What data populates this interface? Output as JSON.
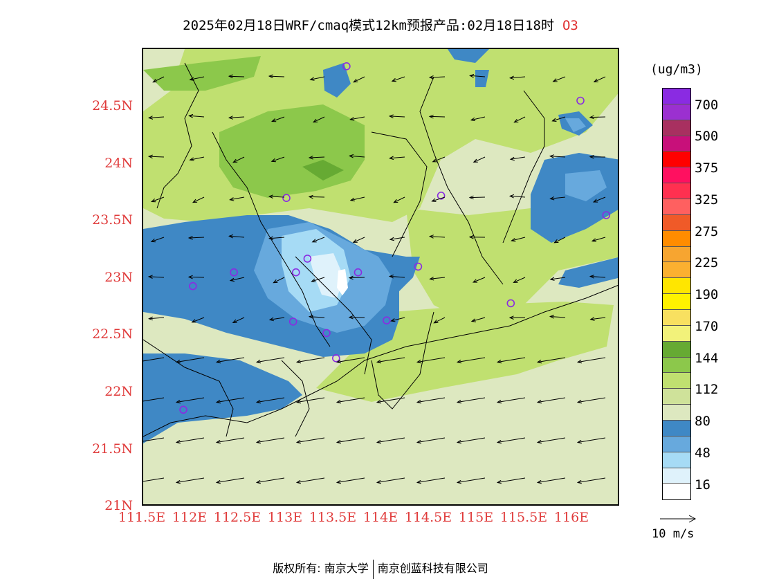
{
  "title": {
    "main": "2025年02月18日WRF/cmaq模式12km预报产品:02月18日18时",
    "species": "O3"
  },
  "axes": {
    "y_labels": [
      "24.5N",
      "24N",
      "23.5N",
      "23N",
      "22.5N",
      "22N",
      "21.5N",
      "21N"
    ],
    "x_labels": [
      "111.5E",
      "112E",
      "112.5E",
      "113E",
      "113.5E",
      "114E",
      "114.5E",
      "115E",
      "115.5E",
      "116E"
    ]
  },
  "legend": {
    "unit": "(ug/m3)",
    "colors": [
      "#8a2be2",
      "#9b30d0",
      "#a83060",
      "#c8107a",
      "#ff0000",
      "#ff1060",
      "#ff3050",
      "#ff6060",
      "#f05a28",
      "#ff8c00",
      "#f7a530",
      "#fbb030",
      "#ffe600",
      "#fff200",
      "#f8e060",
      "#f2f27a",
      "#66aa33",
      "#8cc84b",
      "#c0e070",
      "#cfe29a",
      "#dde8c0",
      "#3f88c5",
      "#67a9dd",
      "#a6dbf5",
      "#dff2fb",
      "#ffffff"
    ],
    "labels": [
      "700",
      "500",
      "375",
      "325",
      "275",
      "225",
      "190",
      "170",
      "144",
      "112",
      "80",
      "48",
      "16"
    ]
  },
  "wind_reference": "10 m/s",
  "footer": {
    "left": "版权所有: 南京大学",
    "right": "南京创蓝科技有限公司"
  },
  "map_data": {
    "lon_range": [
      111.5,
      116.5
    ],
    "lat_range": [
      21.0,
      25.0
    ],
    "stations": [
      [
        113.63,
        24.85
      ],
      [
        116.08,
        24.55
      ],
      [
        113.0,
        23.7
      ],
      [
        114.62,
        23.72
      ],
      [
        116.35,
        23.55
      ],
      [
        112.45,
        23.05
      ],
      [
        113.1,
        23.05
      ],
      [
        113.22,
        23.17
      ],
      [
        113.75,
        23.05
      ],
      [
        114.38,
        23.1
      ],
      [
        112.02,
        22.93
      ],
      [
        113.07,
        22.62
      ],
      [
        113.42,
        22.52
      ],
      [
        114.05,
        22.63
      ],
      [
        115.35,
        22.78
      ],
      [
        113.52,
        22.3
      ],
      [
        111.92,
        21.85
      ]
    ]
  }
}
